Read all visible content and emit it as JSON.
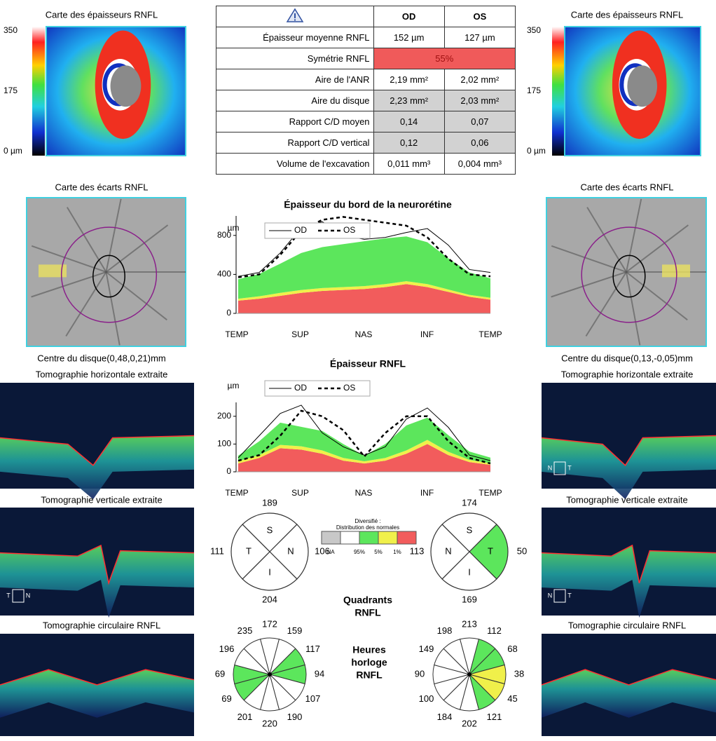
{
  "left": {
    "thickness_title": "Carte des épaisseurs RNFL",
    "scale": [
      350,
      175,
      {
        "value": 0,
        "label": "0 µm"
      }
    ],
    "deviation_title": "Carte des écarts RNFL",
    "disc_center": "Centre du disque(0,48,0,21)mm",
    "horizontal_title": "Tomographie horizontale extraite",
    "vertical_title": "Tomographie verticale extraite",
    "vertical_markers": [
      "T",
      "N"
    ],
    "circular_title": "Tomographie circulaire RNFL"
  },
  "right": {
    "thickness_title": "Carte des épaisseurs RNFL",
    "scale": [
      350,
      175,
      {
        "value": 0,
        "label": "0 µm"
      }
    ],
    "deviation_title": "Carte des écarts RNFL",
    "disc_center": "Centre du disque(0,13,-0,05)mm",
    "horizontal_title": "Tomographie horizontale extraite",
    "horizontal_markers": [
      "N",
      "T"
    ],
    "vertical_title": "Tomographie verticale extraite",
    "vertical_markers": [
      "N",
      "T"
    ],
    "circular_title": "Tomographie circulaire RNFL"
  },
  "table": {
    "header": [
      "OD",
      "OS"
    ],
    "rows": [
      [
        "Épaisseur moyenne RNFL",
        "152 µm",
        "127 µm"
      ],
      [
        "Symétrie RNFL",
        "55%"
      ],
      [
        "Aire de l'ANR",
        "2,19 mm²",
        "2,02 mm²"
      ],
      [
        "Aire du disque",
        "2,23 mm²",
        "2,03 mm²"
      ],
      [
        "Rapport C/D moyen",
        "0,14",
        "0,07"
      ],
      [
        "Rapport C/D vertical",
        "0,12",
        "0,06"
      ],
      [
        "Volume de l'excavation",
        "0,011 mm³",
        "0,004 mm³"
      ]
    ]
  },
  "rim_chart": {
    "type": "area-line",
    "title": "Épaisseur du bord de la neurorétine",
    "y_unit": "µm",
    "xtick_labels": [
      "TEMP",
      "SUP",
      "NAS",
      "INF",
      "TEMP"
    ],
    "ylim": [
      0,
      1000
    ],
    "yticks": [
      0,
      400,
      800
    ],
    "bands": [
      {
        "color": "#f25c5c",
        "values": [
          130,
          150,
          180,
          210,
          230,
          240,
          250,
          270,
          300,
          270,
          220,
          170,
          140
        ]
      },
      {
        "color": "#f0f04a",
        "values": [
          20,
          25,
          30,
          30,
          30,
          30,
          30,
          30,
          30,
          30,
          25,
          20,
          20
        ]
      },
      {
        "color": "#5ce65c",
        "values": [
          200,
          230,
          300,
          380,
          420,
          440,
          460,
          470,
          460,
          430,
          320,
          230,
          200
        ]
      }
    ],
    "series": [
      {
        "name": "OD",
        "color": "#000000",
        "dash": false,
        "values": [
          380,
          420,
          620,
          880,
          940,
          800,
          760,
          780,
          830,
          870,
          700,
          450,
          420
        ]
      },
      {
        "name": "OS",
        "color": "#000000",
        "dash": true,
        "values": [
          370,
          400,
          600,
          850,
          960,
          990,
          960,
          930,
          900,
          780,
          560,
          400,
          380
        ]
      }
    ]
  },
  "rnfl_chart": {
    "type": "area-line",
    "title": "Épaisseur RNFL",
    "y_unit": "µm",
    "xtick_labels": [
      "TEMP",
      "SUP",
      "NAS",
      "INF",
      "TEMP"
    ],
    "ylim": [
      0,
      250
    ],
    "yticks": [
      0,
      100,
      200
    ],
    "bands": [
      {
        "color": "#f25c5c",
        "values": [
          30,
          50,
          85,
          80,
          65,
          40,
          30,
          40,
          65,
          100,
          60,
          35,
          25
        ]
      },
      {
        "color": "#f0f04a",
        "values": [
          8,
          10,
          12,
          12,
          12,
          10,
          8,
          10,
          12,
          15,
          12,
          8,
          6
        ]
      },
      {
        "color": "#5ce65c",
        "values": [
          20,
          50,
          80,
          70,
          70,
          50,
          20,
          50,
          90,
          80,
          60,
          30,
          20
        ]
      }
    ],
    "series": [
      {
        "name": "OD",
        "color": "#000000",
        "dash": false,
        "values": [
          50,
          130,
          210,
          240,
          140,
          90,
          60,
          90,
          190,
          230,
          160,
          60,
          40
        ]
      },
      {
        "name": "OS",
        "color": "#000000",
        "dash": true,
        "values": [
          40,
          60,
          130,
          220,
          200,
          150,
          55,
          140,
          200,
          200,
          110,
          50,
          30
        ]
      }
    ]
  },
  "legend": {
    "title_lines": [
      "Diversifié :",
      "Distribution des normales"
    ],
    "colors": [
      "#c8c8c8",
      "#ffffff",
      "#5ce65c",
      "#f0f04a",
      "#f25c5c"
    ],
    "labels": [
      "NA",
      "95%",
      "5%",
      "1%"
    ]
  },
  "quadrants": {
    "title_lines": [
      "Quadrants",
      "RNFL"
    ],
    "od": {
      "letters": [
        "S",
        "N",
        "I",
        "T"
      ],
      "values": [
        189,
        106,
        204,
        111
      ],
      "colors": [
        "#ffffff",
        "#ffffff",
        "#ffffff",
        "#ffffff"
      ]
    },
    "os": {
      "letters": [
        "S",
        "T",
        "I",
        "N"
      ],
      "values": [
        174,
        50,
        169,
        113
      ],
      "colors": [
        "#ffffff",
        "#5ce65c",
        "#ffffff",
        "#ffffff"
      ]
    }
  },
  "clock_hours": {
    "title_lines": [
      "Heures",
      "horloge",
      "RNFL"
    ],
    "od": {
      "values": [
        172,
        159,
        117,
        94,
        107,
        190,
        220,
        201,
        69,
        69,
        196,
        235
      ],
      "colors": [
        "#ffffff",
        "#ffffff",
        "#5ce65c",
        "#5ce65c",
        "#ffffff",
        "#ffffff",
        "#ffffff",
        "#ffffff",
        "#5ce65c",
        "#5ce65c",
        "#ffffff",
        "#ffffff"
      ]
    },
    "os": {
      "values": [
        213,
        112,
        68,
        38,
        45,
        121,
        202,
        184,
        100,
        90,
        149,
        198
      ],
      "colors": [
        "#ffffff",
        "#5ce65c",
        "#5ce65c",
        "#f0f04a",
        "#f0f04a",
        "#5ce65c",
        "#ffffff",
        "#ffffff",
        "#ffffff",
        "#ffffff",
        "#ffffff",
        "#ffffff"
      ]
    }
  }
}
